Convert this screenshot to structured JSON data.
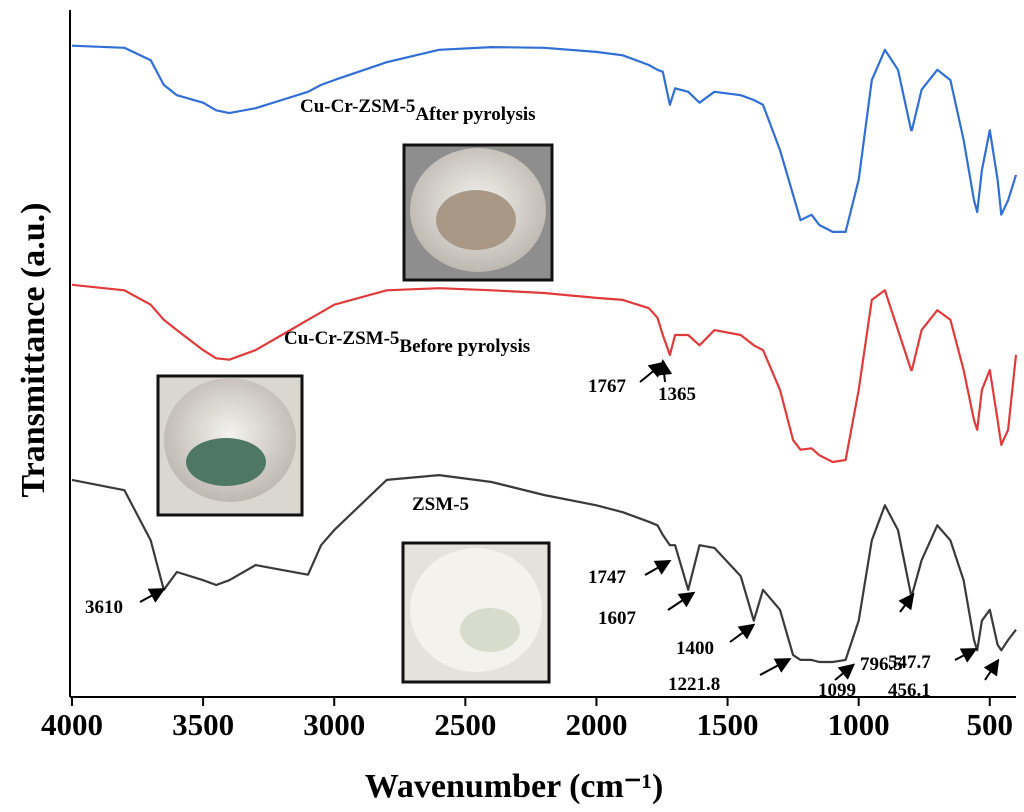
{
  "chart_data": {
    "type": "line",
    "xlabel": "Wavenumber (cm⁻¹)",
    "ylabel": "Transmittance (a.u.)",
    "xlim": [
      4000,
      400
    ],
    "ylim": [
      0,
      100
    ],
    "xticks": [
      4000,
      3500,
      3000,
      2500,
      2000,
      1500,
      1000,
      500
    ],
    "x": [
      4000,
      3800,
      3700,
      3650,
      3600,
      3500,
      3450,
      3400,
      3300,
      3200,
      3100,
      3050,
      3000,
      2800,
      2600,
      2400,
      2200,
      2000,
      1900,
      1800,
      1767,
      1747,
      1720,
      1700,
      1650,
      1607,
      1550,
      1450,
      1400,
      1365,
      1300,
      1250,
      1222,
      1180,
      1150,
      1099,
      1050,
      1000,
      950,
      900,
      850,
      800,
      797,
      760,
      700,
      650,
      600,
      560,
      548,
      530,
      500,
      470,
      456,
      430,
      400
    ],
    "series": [
      {
        "name": "Cu-Cr-ZSM-5",
        "subscript": "After pyrolysis",
        "color": "#2f6fd6",
        "values": [
          94.8,
          94.5,
          92.7,
          89.1,
          87.6,
          86.5,
          85.4,
          85.0,
          85.7,
          86.9,
          88.1,
          89.1,
          89.8,
          92.4,
          94.2,
          94.6,
          94.5,
          93.9,
          93.4,
          92.0,
          91.3,
          91.0,
          86.2,
          88.6,
          88.1,
          86.5,
          88.1,
          87.6,
          86.9,
          86.2,
          79.6,
          73.1,
          69.4,
          70.2,
          68.7,
          67.7,
          67.7,
          75.3,
          89.8,
          94.2,
          91.3,
          82.5,
          82.5,
          88.4,
          91.3,
          89.8,
          81.1,
          72.3,
          70.6,
          76.7,
          82.5,
          75.3,
          70.2,
          72.3,
          76.0
        ]
      },
      {
        "name": "Cu-Cr-ZSM-5",
        "subscript": "Before pyrolysis",
        "color": "#e03a3a",
        "values": [
          60.0,
          59.2,
          57.1,
          54.9,
          53.4,
          50.5,
          49.3,
          49.1,
          50.5,
          52.7,
          54.9,
          56.0,
          57.1,
          59.2,
          59.5,
          59.2,
          58.8,
          58.1,
          57.8,
          56.6,
          55.2,
          52.7,
          49.8,
          52.7,
          52.7,
          51.2,
          53.4,
          52.7,
          51.2,
          50.5,
          44.7,
          37.4,
          36.0,
          36.2,
          35.2,
          34.2,
          34.5,
          44.7,
          57.8,
          59.2,
          53.4,
          47.6,
          47.6,
          53.4,
          56.3,
          54.9,
          47.6,
          40.3,
          38.9,
          44.7,
          47.6,
          40.3,
          36.7,
          38.9,
          49.8
        ]
      },
      {
        "name": "ZSM-5",
        "color": "#3a3a3a",
        "values": [
          31.6,
          30.1,
          22.8,
          15.6,
          18.2,
          17.0,
          16.3,
          17.0,
          19.2,
          18.5,
          17.8,
          22.1,
          24.3,
          31.6,
          32.3,
          31.3,
          29.4,
          27.9,
          26.9,
          25.5,
          25.0,
          23.6,
          22.1,
          22.1,
          15.6,
          22.1,
          21.7,
          17.6,
          11.1,
          15.6,
          12.7,
          6.1,
          5.4,
          5.4,
          5.1,
          5.1,
          5.4,
          11.1,
          22.8,
          27.9,
          24.3,
          14.8,
          14.8,
          19.9,
          25.0,
          22.8,
          17.0,
          8.3,
          6.8,
          11.1,
          12.7,
          7.6,
          6.8,
          8.3,
          9.8
        ]
      }
    ],
    "annotations": [
      "3610",
      "1767",
      "1365",
      "1747",
      "1607",
      "1400",
      "1221.8",
      "1099",
      "796.5",
      "547.7",
      "456.1"
    ]
  }
}
